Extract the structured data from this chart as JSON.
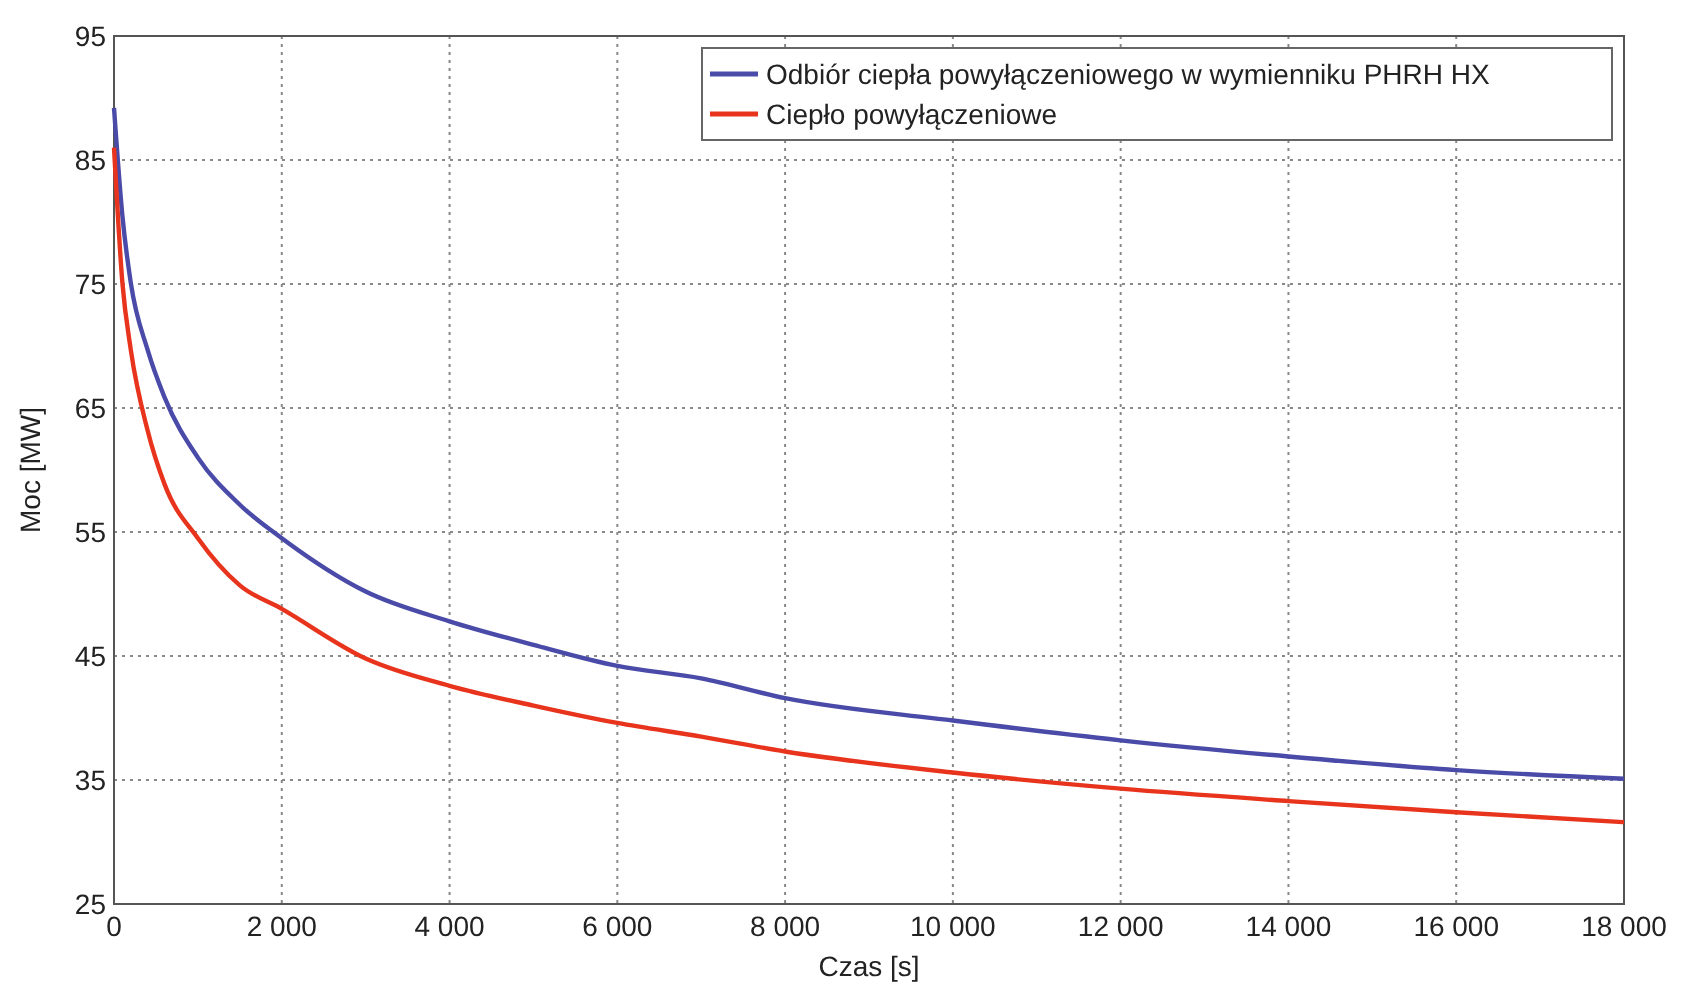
{
  "chart_data": {
    "type": "line",
    "xlabel": "Czas [s]",
    "ylabel": "Moc [MW]",
    "x": [
      0,
      100,
      200,
      400,
      600,
      1000,
      1500,
      2000,
      3000,
      4000,
      5000,
      6000,
      7000,
      8000,
      10000,
      12000,
      14000,
      16000,
      18000
    ],
    "series": [
      {
        "name": "Odbiór ciepła powyłączeniowego w wymienniku PHRH HX",
        "color": "#4a4aa8",
        "values": [
          89.2,
          80.5,
          75.1,
          69.7,
          65.9,
          61,
          57.2,
          54.5,
          50.2,
          47.8,
          45.9,
          44.2,
          43.2,
          41.6,
          39.8,
          38.2,
          36.9,
          35.8,
          35.1
        ]
      },
      {
        "name": "Ciepło powyłączeniowe",
        "color": "#e8341c",
        "values": [
          86,
          75.1,
          69.7,
          63.2,
          58.9,
          54.5,
          50.7,
          48.8,
          44.8,
          42.6,
          41,
          39.6,
          38.5,
          37.3,
          35.6,
          34.3,
          33.3,
          32.4,
          31.6
        ]
      }
    ],
    "xlim": [
      0,
      18000
    ],
    "ylim": [
      25,
      95
    ],
    "xticks": [
      0,
      {
        "value": 2000,
        "label": "2 000"
      },
      {
        "value": 4000,
        "label": "4 000"
      },
      {
        "value": 6000,
        "label": "6 000"
      },
      {
        "value": 8000,
        "label": "8 000"
      },
      {
        "value": 10000,
        "label": "10 000"
      },
      {
        "value": 12000,
        "label": "12 000"
      },
      {
        "value": 14000,
        "label": "14 000"
      },
      {
        "value": 16000,
        "label": "16 000"
      },
      {
        "value": 18000,
        "label": "18 000"
      }
    ],
    "yticks": [
      25,
      35,
      45,
      55,
      65,
      75,
      85,
      95
    ],
    "grid": true,
    "legend": "top right",
    "line_style": "solid",
    "marker": "none"
  }
}
